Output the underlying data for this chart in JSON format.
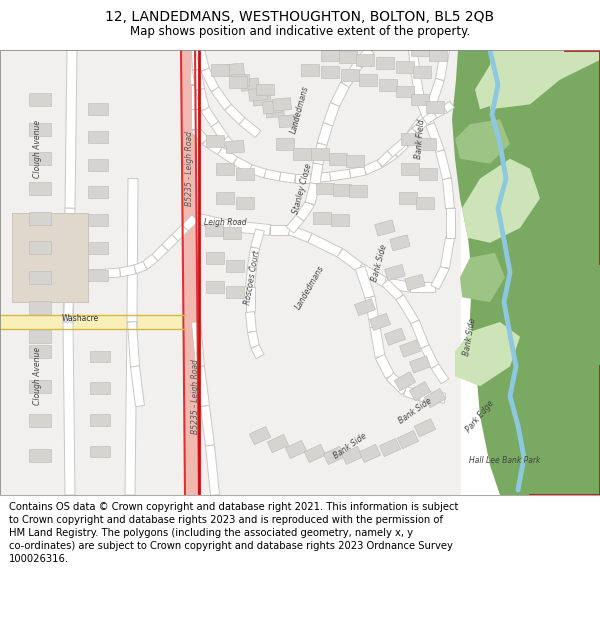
{
  "title": "12, LANDEDMANS, WESTHOUGHTON, BOLTON, BL5 2QB",
  "subtitle": "Map shows position and indicative extent of the property.",
  "footer": "Contains OS data © Crown copyright and database right 2021. This information is subject\nto Crown copyright and database rights 2023 and is reproduced with the permission of\nHM Land Registry. The polygons (including the associated geometry, namely x, y\nco-ordinates) are subject to Crown copyright and database rights 2023 Ordnance Survey\n100026316.",
  "map_bg": "#f2f0ee",
  "building_color": "#d6d4d0",
  "building_outline": "#bbb9b5",
  "green_dark": "#7aaa62",
  "green_mid": "#9dc484",
  "green_light": "#b8d9a4",
  "green_pale": "#cce4b8",
  "water_color": "#8ec8e0",
  "road_white": "#ffffff",
  "road_outline": "#c8c8c4",
  "road_red_fill": "#f0b8b0",
  "road_red_line": "#e03030",
  "road_yellow_fill": "#f8f0b8",
  "road_yellow_line": "#d4b840",
  "beige_building": "#e0d8cc",
  "red_boundary": "#cc1010",
  "title_fontsize": 10,
  "subtitle_fontsize": 8.5,
  "footer_fontsize": 7.2
}
